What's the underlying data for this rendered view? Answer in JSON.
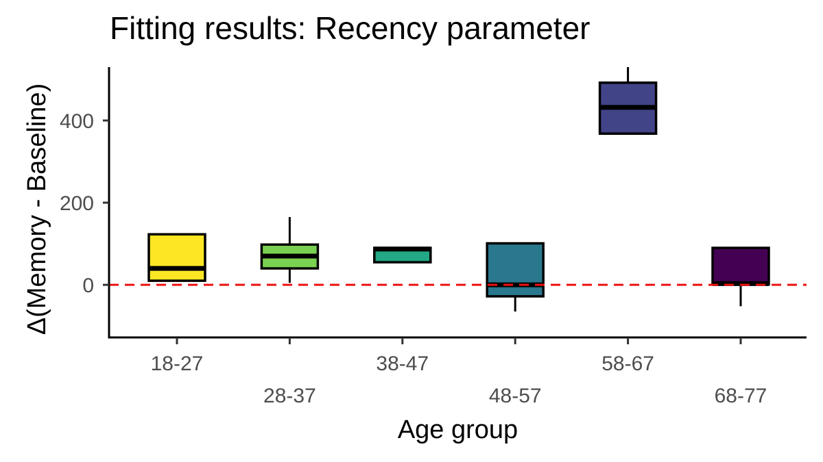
{
  "chart_data": {
    "type": "box",
    "title": "Fitting results: Recency parameter",
    "xlabel": "Age group",
    "ylabel": "Δ(Memory - Baseline)",
    "ylim": [
      -128,
      530
    ],
    "yticks": [
      0,
      200,
      400
    ],
    "reference_line": {
      "y": 0,
      "color": "#ee1111",
      "style": "dashed"
    },
    "grid": false,
    "categories": [
      "18-27",
      "28-37",
      "38-47",
      "48-57",
      "58-67",
      "68-77"
    ],
    "boxes": [
      {
        "category": "18-27",
        "low": 10,
        "q1": 10,
        "median": 40,
        "q3": 123,
        "high": 123,
        "color": "#fde725"
      },
      {
        "category": "28-37",
        "low": 5,
        "q1": 40,
        "median": 70,
        "q3": 98,
        "high": 165,
        "color": "#7ad151"
      },
      {
        "category": "38-47",
        "low": 55,
        "q1": 55,
        "median": 87,
        "q3": 90,
        "high": 90,
        "color": "#22a884"
      },
      {
        "category": "48-57",
        "low": -65,
        "q1": -28,
        "median": 0,
        "q3": 101,
        "high": 101,
        "color": "#2a788e"
      },
      {
        "category": "58-67",
        "low": 368,
        "q1": 368,
        "median": 432,
        "q3": 492,
        "high": 530,
        "color": "#414487"
      },
      {
        "category": "68-77",
        "low": -52,
        "q1": 1,
        "median": 3,
        "q3": 90,
        "high": 90,
        "color": "#440154"
      }
    ]
  }
}
